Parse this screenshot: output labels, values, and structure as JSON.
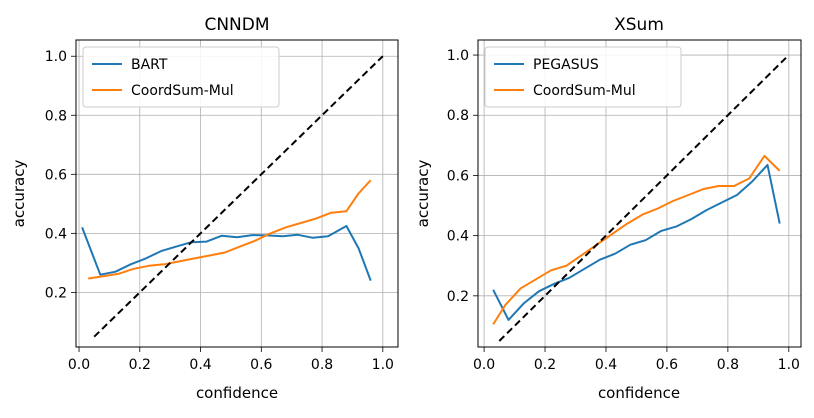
{
  "chart_data": [
    {
      "type": "line",
      "title": "CNNDM",
      "xlabel": "confidence",
      "ylabel": "accuracy",
      "xlim": [
        -0.01,
        1.05
      ],
      "ylim": [
        0.015,
        1.055
      ],
      "xticks": [
        0.0,
        0.2,
        0.4,
        0.6,
        0.8,
        1.0
      ],
      "yticks": [
        0.2,
        0.4,
        0.6,
        0.8,
        1.0
      ],
      "tick_labels_x": [
        "0.0",
        "0.2",
        "0.4",
        "0.6",
        "0.8",
        "1.0"
      ],
      "tick_labels_y": [
        "0.2",
        "0.4",
        "0.6",
        "0.8",
        "1.0"
      ],
      "grid": true,
      "legend": "top-left",
      "series": [
        {
          "name": "BART",
          "color": "#1f77b4",
          "x": [
            0.01,
            0.07,
            0.12,
            0.17,
            0.22,
            0.27,
            0.32,
            0.37,
            0.42,
            0.47,
            0.52,
            0.57,
            0.62,
            0.67,
            0.72,
            0.77,
            0.82,
            0.88,
            0.92,
            0.96
          ],
          "y": [
            0.42,
            0.26,
            0.27,
            0.295,
            0.315,
            0.34,
            0.355,
            0.37,
            0.372,
            0.392,
            0.387,
            0.394,
            0.393,
            0.39,
            0.395,
            0.385,
            0.39,
            0.425,
            0.35,
            0.24
          ]
        },
        {
          "name": "CoordSum-Mul",
          "color": "#ff7f0e",
          "x": [
            0.03,
            0.08,
            0.13,
            0.18,
            0.23,
            0.28,
            0.33,
            0.38,
            0.43,
            0.48,
            0.53,
            0.58,
            0.63,
            0.68,
            0.73,
            0.78,
            0.83,
            0.88,
            0.92,
            0.96
          ],
          "y": [
            0.247,
            0.255,
            0.263,
            0.28,
            0.29,
            0.295,
            0.305,
            0.315,
            0.325,
            0.335,
            0.355,
            0.375,
            0.4,
            0.42,
            0.435,
            0.45,
            0.47,
            0.475,
            0.535,
            0.58
          ]
        },
        {
          "name": "",
          "style": "dashed",
          "color": "#000000",
          "x": [
            0.05,
            1.0
          ],
          "y": [
            0.05,
            1.0
          ]
        }
      ]
    },
    {
      "type": "line",
      "title": "XSum",
      "xlabel": "confidence",
      "ylabel": "accuracy",
      "xlim": [
        -0.02,
        1.04
      ],
      "ylim": [
        0.03,
        1.05
      ],
      "xticks": [
        0.0,
        0.2,
        0.4,
        0.6,
        0.8,
        1.0
      ],
      "yticks": [
        0.2,
        0.4,
        0.6,
        0.8,
        1.0
      ],
      "tick_labels_x": [
        "0.0",
        "0.2",
        "0.4",
        "0.6",
        "0.8",
        "1.0"
      ],
      "tick_labels_y": [
        "0.2",
        "0.4",
        "0.6",
        "0.8",
        "1.0"
      ],
      "grid": true,
      "legend": "top-left",
      "series": [
        {
          "name": "PEGASUS",
          "color": "#1f77b4",
          "x": [
            0.03,
            0.08,
            0.13,
            0.18,
            0.23,
            0.28,
            0.33,
            0.38,
            0.43,
            0.48,
            0.53,
            0.58,
            0.63,
            0.68,
            0.73,
            0.78,
            0.83,
            0.88,
            0.93,
            0.97
          ],
          "y": [
            0.22,
            0.12,
            0.175,
            0.215,
            0.24,
            0.26,
            0.29,
            0.32,
            0.34,
            0.37,
            0.385,
            0.415,
            0.43,
            0.455,
            0.485,
            0.51,
            0.535,
            0.58,
            0.635,
            0.44
          ]
        },
        {
          "name": "CoordSum-Mul",
          "color": "#ff7f0e",
          "x": [
            0.03,
            0.07,
            0.12,
            0.17,
            0.22,
            0.27,
            0.32,
            0.37,
            0.42,
            0.47,
            0.52,
            0.57,
            0.62,
            0.67,
            0.72,
            0.77,
            0.82,
            0.87,
            0.92,
            0.97
          ],
          "y": [
            0.105,
            0.17,
            0.225,
            0.255,
            0.285,
            0.3,
            0.335,
            0.37,
            0.405,
            0.44,
            0.47,
            0.49,
            0.515,
            0.535,
            0.555,
            0.565,
            0.565,
            0.59,
            0.665,
            0.615
          ]
        },
        {
          "name": "",
          "style": "dashed",
          "color": "#000000",
          "x": [
            0.05,
            1.0
          ],
          "y": [
            0.05,
            1.0
          ]
        }
      ]
    }
  ]
}
